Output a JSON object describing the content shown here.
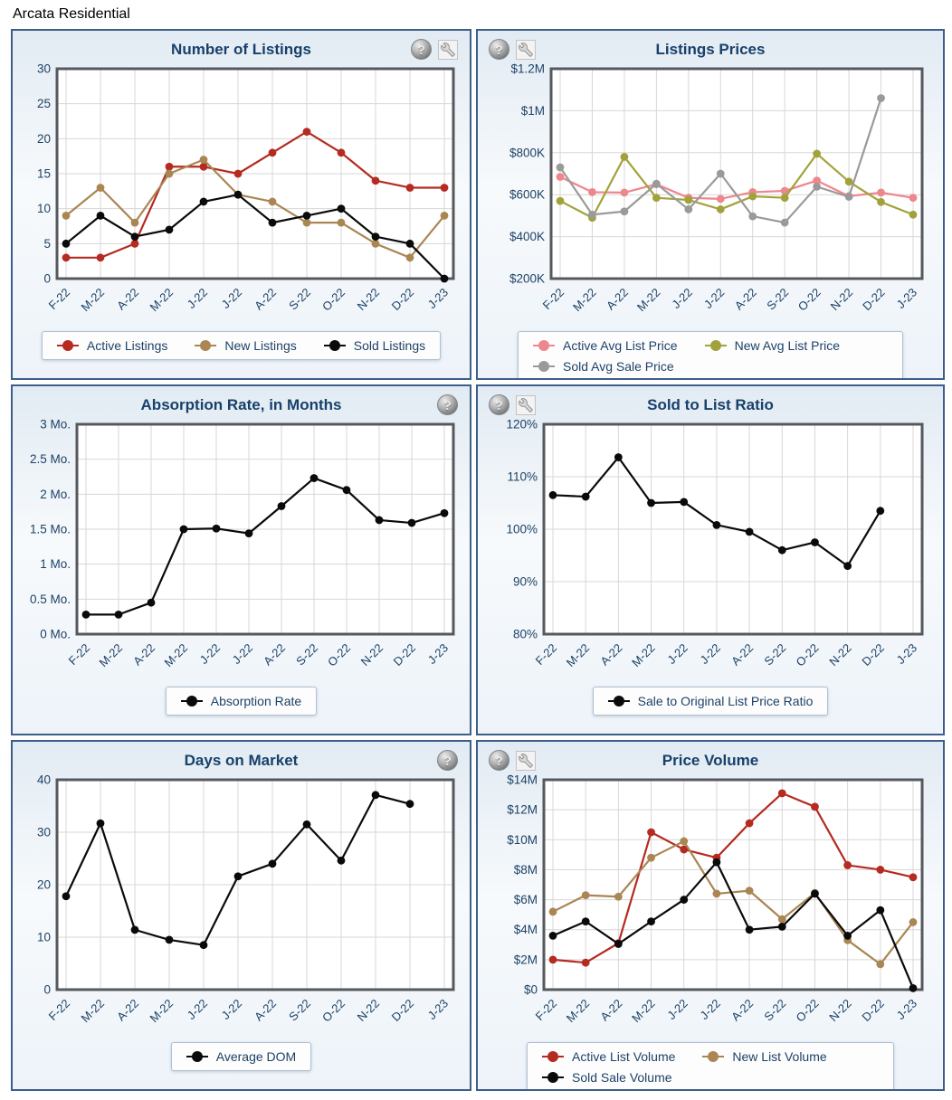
{
  "page": {
    "title": "Arcata Residential"
  },
  "icons": {
    "help_glyph": "?"
  },
  "colors": {
    "red": "#b52a21",
    "tan": "#aa8653",
    "black": "#0a0a0a",
    "pink": "#ee868d",
    "olive": "#a2a23c",
    "gray": "#9a9a9a",
    "navy_text": "#1d4166",
    "grid_line": "#d7d7d7",
    "plot_border": "#55585c",
    "panel_border": "#3c5e89"
  },
  "chart_data": [
    {
      "type": "line",
      "title": "Number of Listings",
      "categories": [
        "F-22",
        "M-22",
        "A-22",
        "M-22",
        "J-22",
        "J-22",
        "A-22",
        "S-22",
        "O-22",
        "N-22",
        "D-22",
        "J-23"
      ],
      "series": [
        {
          "name": "Active Listings",
          "color": "#b52a21",
          "values": [
            3,
            3,
            5,
            16,
            16,
            15,
            18,
            21,
            18,
            14,
            13,
            13
          ]
        },
        {
          "name": "New Listings",
          "color": "#aa8653",
          "values": [
            9,
            13,
            8,
            15,
            17,
            12,
            11,
            8,
            8,
            5,
            3,
            9
          ]
        },
        {
          "name": "Sold Listings",
          "color": "#0a0a0a",
          "values": [
            5,
            9,
            6,
            7,
            11,
            12,
            8,
            9,
            10,
            6,
            5,
            0
          ]
        }
      ],
      "ylim": [
        0,
        30
      ],
      "yticks": [
        {
          "value": 0,
          "label": "0"
        },
        {
          "value": 5,
          "label": "5"
        },
        {
          "value": 10,
          "label": "10"
        },
        {
          "value": 15,
          "label": "15"
        },
        {
          "value": 20,
          "label": "20"
        },
        {
          "value": 25,
          "label": "25"
        },
        {
          "value": 30,
          "label": "30"
        }
      ],
      "grid": true,
      "legend_position": "bottom",
      "icons": [
        "help",
        "settings"
      ],
      "icons_position": "right",
      "layout": {
        "left_margin": 42,
        "legend_max_width": null
      }
    },
    {
      "type": "line",
      "title": "Listings Prices",
      "categories": [
        "F-22",
        "M-22",
        "A-22",
        "M-22",
        "J-22",
        "J-22",
        "A-22",
        "S-22",
        "O-22",
        "N-22",
        "D-22",
        "J-23"
      ],
      "series": [
        {
          "name": "Active Avg List Price",
          "color": "#ee868d",
          "values": [
            685000,
            612000,
            610000,
            650000,
            585000,
            580000,
            612000,
            618000,
            667000,
            593000,
            610000,
            585000
          ]
        },
        {
          "name": "New Avg List Price",
          "color": "#a2a23c",
          "values": [
            570000,
            490000,
            780000,
            585000,
            575000,
            530000,
            592000,
            585000,
            795000,
            662000,
            565000,
            505000
          ]
        },
        {
          "name": "Sold Avg Sale Price",
          "color": "#9a9a9a",
          "values": [
            730000,
            505000,
            520000,
            652000,
            530000,
            700000,
            497000,
            467000,
            638000,
            590000,
            1060000,
            null
          ]
        }
      ],
      "ylim": [
        200000,
        1200000
      ],
      "yticks": [
        {
          "value": 200000,
          "label": "$200K"
        },
        {
          "value": 400000,
          "label": "$400K"
        },
        {
          "value": 600000,
          "label": "$600K"
        },
        {
          "value": 800000,
          "label": "$800K"
        },
        {
          "value": 1000000,
          "label": "$1M"
        },
        {
          "value": 1200000,
          "label": "$1.2M"
        }
      ],
      "grid": true,
      "legend_position": "bottom",
      "icons": [
        "help",
        "settings"
      ],
      "icons_position": "left",
      "layout": {
        "left_margin": 70,
        "legend_max_width": 392
      }
    },
    {
      "type": "line",
      "title": "Absorption Rate, in Months",
      "categories": [
        "F-22",
        "M-22",
        "A-22",
        "M-22",
        "J-22",
        "J-22",
        "A-22",
        "S-22",
        "O-22",
        "N-22",
        "D-22",
        "J-23"
      ],
      "series": [
        {
          "name": "Absorption Rate",
          "color": "#0a0a0a",
          "values": [
            0.28,
            0.28,
            0.45,
            1.5,
            1.51,
            1.44,
            1.83,
            2.23,
            2.06,
            1.63,
            1.59,
            1.73
          ]
        }
      ],
      "ylim": [
        0,
        3
      ],
      "yticks": [
        {
          "value": 0,
          "label": "0 Mo."
        },
        {
          "value": 0.5,
          "label": "0.5 Mo."
        },
        {
          "value": 1,
          "label": "1 Mo."
        },
        {
          "value": 1.5,
          "label": "1.5 Mo."
        },
        {
          "value": 2,
          "label": "2 Mo."
        },
        {
          "value": 2.5,
          "label": "2.5 Mo."
        },
        {
          "value": 3,
          "label": "3 Mo."
        }
      ],
      "grid": true,
      "legend_position": "bottom",
      "icons": [
        "help"
      ],
      "icons_position": "right",
      "layout": {
        "left_margin": 64,
        "legend_max_width": null
      }
    },
    {
      "type": "line",
      "title": "Sold to List Ratio",
      "categories": [
        "F-22",
        "M-22",
        "A-22",
        "M-22",
        "J-22",
        "J-22",
        "A-22",
        "S-22",
        "O-22",
        "N-22",
        "D-22",
        "J-23"
      ],
      "series": [
        {
          "name": "Sale to Original List Price Ratio",
          "color": "#0a0a0a",
          "values": [
            106.5,
            106.2,
            113.7,
            105.0,
            105.2,
            100.8,
            99.5,
            96.0,
            97.5,
            93.0,
            103.5,
            null
          ]
        }
      ],
      "ylim": [
        80,
        120
      ],
      "yticks": [
        {
          "value": 80,
          "label": "80%"
        },
        {
          "value": 90,
          "label": "90%"
        },
        {
          "value": 100,
          "label": "100%"
        },
        {
          "value": 110,
          "label": "110%"
        },
        {
          "value": 120,
          "label": "120%"
        }
      ],
      "grid": true,
      "legend_position": "bottom",
      "icons": [
        "help",
        "settings"
      ],
      "icons_position": "left",
      "layout": {
        "left_margin": 62,
        "legend_max_width": null
      }
    },
    {
      "type": "line",
      "title": "Days on Market",
      "categories": [
        "F-22",
        "M-22",
        "A-22",
        "M-22",
        "J-22",
        "J-22",
        "A-22",
        "S-22",
        "O-22",
        "N-22",
        "D-22",
        "J-23"
      ],
      "series": [
        {
          "name": "Average DOM",
          "color": "#0a0a0a",
          "values": [
            17.8,
            31.7,
            11.4,
            9.5,
            8.5,
            21.6,
            24.0,
            31.5,
            24.6,
            37.1,
            35.4,
            null
          ]
        }
      ],
      "ylim": [
        0,
        40
      ],
      "yticks": [
        {
          "value": 0,
          "label": "0"
        },
        {
          "value": 10,
          "label": "10"
        },
        {
          "value": 20,
          "label": "20"
        },
        {
          "value": 30,
          "label": "30"
        },
        {
          "value": 40,
          "label": "40"
        }
      ],
      "grid": true,
      "legend_position": "bottom",
      "icons": [
        "help"
      ],
      "icons_position": "right",
      "layout": {
        "left_margin": 42,
        "legend_max_width": null
      }
    },
    {
      "type": "line",
      "title": "Price Volume",
      "categories": [
        "F-22",
        "M-22",
        "A-22",
        "M-22",
        "J-22",
        "J-22",
        "A-22",
        "S-22",
        "O-22",
        "N-22",
        "D-22",
        "J-23"
      ],
      "series": [
        {
          "name": "Active List Volume",
          "color": "#b52a21",
          "values": [
            2000000,
            1800000,
            3100000,
            10500000,
            9350000,
            8800000,
            11100000,
            13100000,
            12200000,
            8300000,
            8000000,
            7500000
          ]
        },
        {
          "name": "New List Volume",
          "color": "#aa8653",
          "values": [
            5200000,
            6300000,
            6200000,
            8800000,
            9900000,
            6400000,
            6600000,
            4700000,
            6450000,
            3300000,
            1700000,
            4500000
          ]
        },
        {
          "name": "Sold Sale Volume",
          "color": "#0a0a0a",
          "values": [
            3600000,
            4550000,
            3050000,
            4550000,
            6000000,
            8500000,
            4000000,
            4200000,
            6400000,
            3600000,
            5300000,
            100000
          ]
        }
      ],
      "ylim": [
        0,
        14000000
      ],
      "yticks": [
        {
          "value": 0,
          "label": "$0"
        },
        {
          "value": 2000000,
          "label": "$2M"
        },
        {
          "value": 4000000,
          "label": "$4M"
        },
        {
          "value": 6000000,
          "label": "$6M"
        },
        {
          "value": 8000000,
          "label": "$8M"
        },
        {
          "value": 10000000,
          "label": "$10M"
        },
        {
          "value": 12000000,
          "label": "$12M"
        },
        {
          "value": 14000000,
          "label": "$14M"
        }
      ],
      "grid": true,
      "legend_position": "bottom",
      "icons": [
        "help",
        "settings"
      ],
      "icons_position": "left",
      "layout": {
        "left_margin": 62,
        "legend_max_width": 372
      }
    }
  ]
}
